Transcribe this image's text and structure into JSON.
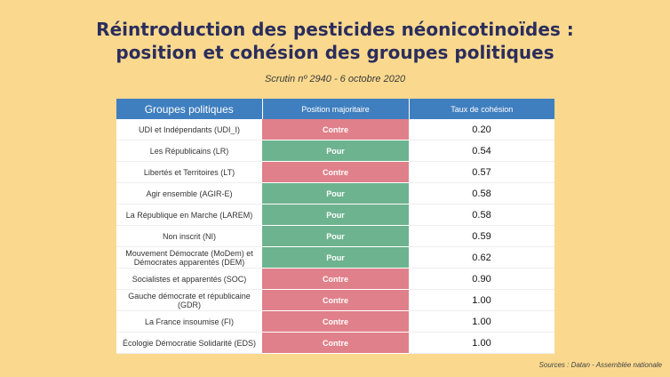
{
  "title_line1": "Réintroduction des pesticides néonicotinoïdes :",
  "title_line2": "position et cohésion des groupes politiques",
  "subtitle": "Scrutin nº 2940 - 6 octobre 2020",
  "headers": {
    "group": "Groupes politiques",
    "position": "Position majoritaire",
    "cohesion": "Taux de cohésion"
  },
  "colors": {
    "contre": "#e0808a",
    "pour": "#6db38f",
    "header": "#3f7fbf"
  },
  "rows": [
    {
      "group": "UDI et Indépendants (UDI_I)",
      "position": "Contre",
      "cohesion": "0.20"
    },
    {
      "group": "Les Républicains (LR)",
      "position": "Pour",
      "cohesion": "0.54"
    },
    {
      "group": "Libertés et Territoires (LT)",
      "position": "Contre",
      "cohesion": "0.57"
    },
    {
      "group": "Agir ensemble (AGIR-E)",
      "position": "Pour",
      "cohesion": "0.58"
    },
    {
      "group": "La République en Marche (LAREM)",
      "position": "Pour",
      "cohesion": "0.58"
    },
    {
      "group": "Non inscrit (NI)",
      "position": "Pour",
      "cohesion": "0.59"
    },
    {
      "group": "Mouvement Démocrate (MoDem) et Démocrates apparentés (DEM)",
      "position": "Pour",
      "cohesion": "0.62"
    },
    {
      "group": "Socialistes et apparentés (SOC)",
      "position": "Contre",
      "cohesion": "0.90"
    },
    {
      "group": "Gauche démocrate et républicaine (GDR)",
      "position": "Contre",
      "cohesion": "1.00"
    },
    {
      "group": "La France insoumise (FI)",
      "position": "Contre",
      "cohesion": "1.00"
    },
    {
      "group": "Écologie Démocratie Solidarité (EDS)",
      "position": "Contre",
      "cohesion": "1.00"
    }
  ],
  "source": "Sources : Datan - Assemblée nationale"
}
